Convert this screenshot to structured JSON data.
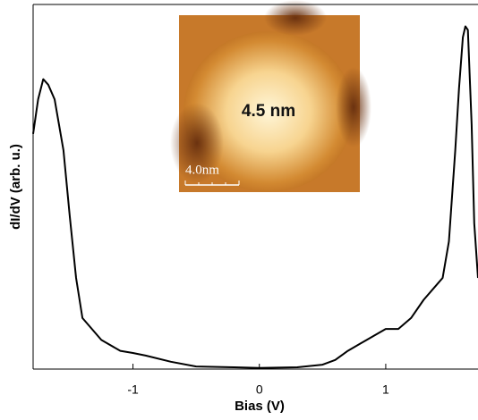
{
  "chart_data": {
    "type": "line",
    "xlabel": "Bias (V)",
    "ylabel": "dI/dV (arb. u.)",
    "annotations": {
      "inset_label": "4.5 nm",
      "scale_bar": "4.0nm"
    },
    "x": [
      -1.79,
      -1.75,
      -1.71,
      -1.67,
      -1.62,
      -1.55,
      -1.5,
      -1.45,
      -1.4,
      -1.35,
      -1.25,
      -1.1,
      -1.0,
      -0.9,
      -0.7,
      -0.5,
      -0.2,
      0,
      0.3,
      0.5,
      0.6,
      0.7,
      0.8,
      0.9,
      1.0,
      1.1,
      1.2,
      1.3,
      1.4,
      1.45,
      1.5,
      1.55,
      1.58,
      1.61,
      1.63,
      1.65,
      1.68,
      1.7,
      1.73
    ],
    "series": [
      {
        "color": "#000000",
        "values": [
          64.5,
          74,
          79.5,
          78,
          74,
          60,
          42,
          25,
          14,
          12,
          8,
          5,
          4.4,
          3.7,
          2,
          0.7,
          0.5,
          0.3,
          0.5,
          1.2,
          2.5,
          5,
          7,
          9,
          11,
          11,
          14,
          19,
          23,
          25,
          35,
          60,
          77,
          91,
          94,
          93,
          67,
          40,
          25
        ]
      }
    ],
    "xlim": [
      -1.79,
      1.73
    ],
    "ylim": [
      0,
      100
    ],
    "xticks": [
      -1,
      0,
      1
    ]
  }
}
